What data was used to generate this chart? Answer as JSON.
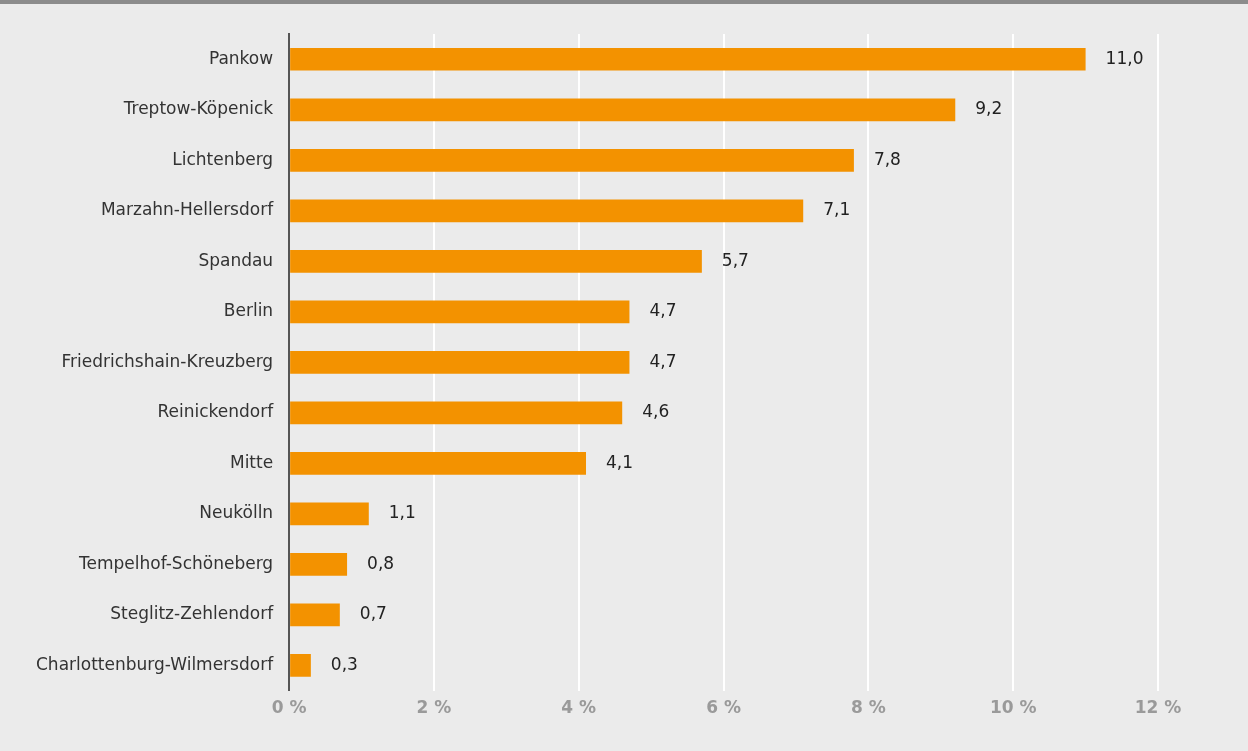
{
  "chart_data": {
    "type": "bar",
    "orientation": "horizontal",
    "categories": [
      "Pankow",
      "Treptow-Köpenick",
      "Lichtenberg",
      "Marzahn-Hellersdorf",
      "Spandau",
      "Berlin",
      "Friedrichshain-Kreuzberg",
      "Reinickendorf",
      "Mitte",
      "Neukölln",
      "Tempelhof-Schöneberg",
      "Steglitz-Zehlendorf",
      "Charlottenburg-Wilmersdorf"
    ],
    "values": [
      11.0,
      9.2,
      7.8,
      7.1,
      5.7,
      4.7,
      4.7,
      4.6,
      4.1,
      1.1,
      0.8,
      0.7,
      0.3
    ],
    "value_labels": [
      "11,0",
      "9,2",
      "7,8",
      "7,1",
      "5,7",
      "4,7",
      "4,7",
      "4,6",
      "4,1",
      "1,1",
      "0,8",
      "0,7",
      "0,3"
    ],
    "color": "#f39200",
    "xlim": [
      0,
      12
    ],
    "xticks": [
      {
        "value": 0,
        "label": "0 %"
      },
      {
        "value": 2,
        "label": "2 %"
      },
      {
        "value": 4,
        "label": "4 %"
      },
      {
        "value": 6,
        "label": "6 %"
      },
      {
        "value": 8,
        "label": "8 %"
      },
      {
        "value": 10,
        "label": "10 %"
      },
      {
        "value": 12,
        "label": "12 %"
      }
    ],
    "grid": "x"
  }
}
